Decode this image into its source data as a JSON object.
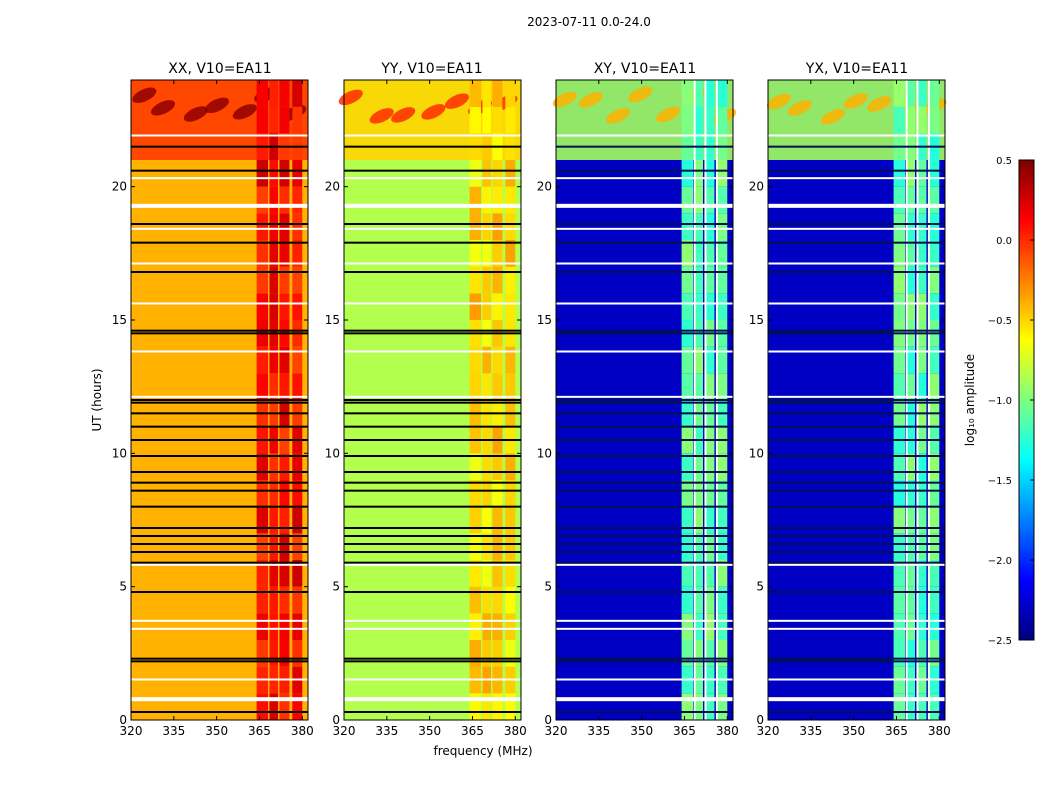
{
  "figure_title": "2023-07-11 0.0-24.0",
  "chart_data": [
    {
      "type": "heatmap",
      "title": "XX, V10=EA11",
      "xlabel": "",
      "ylabel": "UT (hours)",
      "xlim": [
        320,
        382
      ],
      "ylim": [
        0,
        24
      ],
      "xticks": [
        "320",
        "335",
        "350",
        "365",
        "380"
      ],
      "yticks": [
        "0",
        "5",
        "10",
        "15",
        "20"
      ],
      "baseline_log_amplitude": -0.4,
      "rfi_band_log_amplitude": 0.1
    },
    {
      "type": "heatmap",
      "title": "YY, V10=EA11",
      "xlabel": "frequency (MHz)",
      "ylabel": "",
      "xlim": [
        320,
        382
      ],
      "ylim": [
        0,
        24
      ],
      "xticks": [
        "320",
        "335",
        "350",
        "365",
        "380"
      ],
      "yticks": [
        "0",
        "5",
        "10",
        "15",
        "20"
      ],
      "baseline_log_amplitude": -0.85,
      "rfi_band_log_amplitude": -0.5
    },
    {
      "type": "heatmap",
      "title": "XY, V10=EA11",
      "xlabel": "",
      "ylabel": "",
      "xlim": [
        320,
        382
      ],
      "ylim": [
        0,
        24
      ],
      "xticks": [
        "320",
        "335",
        "350",
        "365",
        "380"
      ],
      "yticks": [
        "0",
        "5",
        "10",
        "15",
        "20"
      ],
      "baseline_log_amplitude": -2.3,
      "rfi_band_log_amplitude": -1.1
    },
    {
      "type": "heatmap",
      "title": "YX, V10=EA11",
      "xlabel": "",
      "ylabel": "",
      "xlim": [
        320,
        382
      ],
      "ylim": [
        0,
        24
      ],
      "xticks": [
        "320",
        "335",
        "350",
        "365",
        "380"
      ],
      "yticks": [
        "0",
        "5",
        "10",
        "15",
        "20"
      ],
      "baseline_log_amplitude": -2.3,
      "rfi_band_log_amplitude": -1.1
    }
  ],
  "colorbar": {
    "label": "log₁₀ amplitude",
    "range": [
      -2.5,
      0.5
    ],
    "ticks": [
      "0.5",
      "0.0",
      "−0.5",
      "−1.0",
      "−1.5",
      "−2.0",
      "−2.5"
    ],
    "colormap": "jet"
  }
}
